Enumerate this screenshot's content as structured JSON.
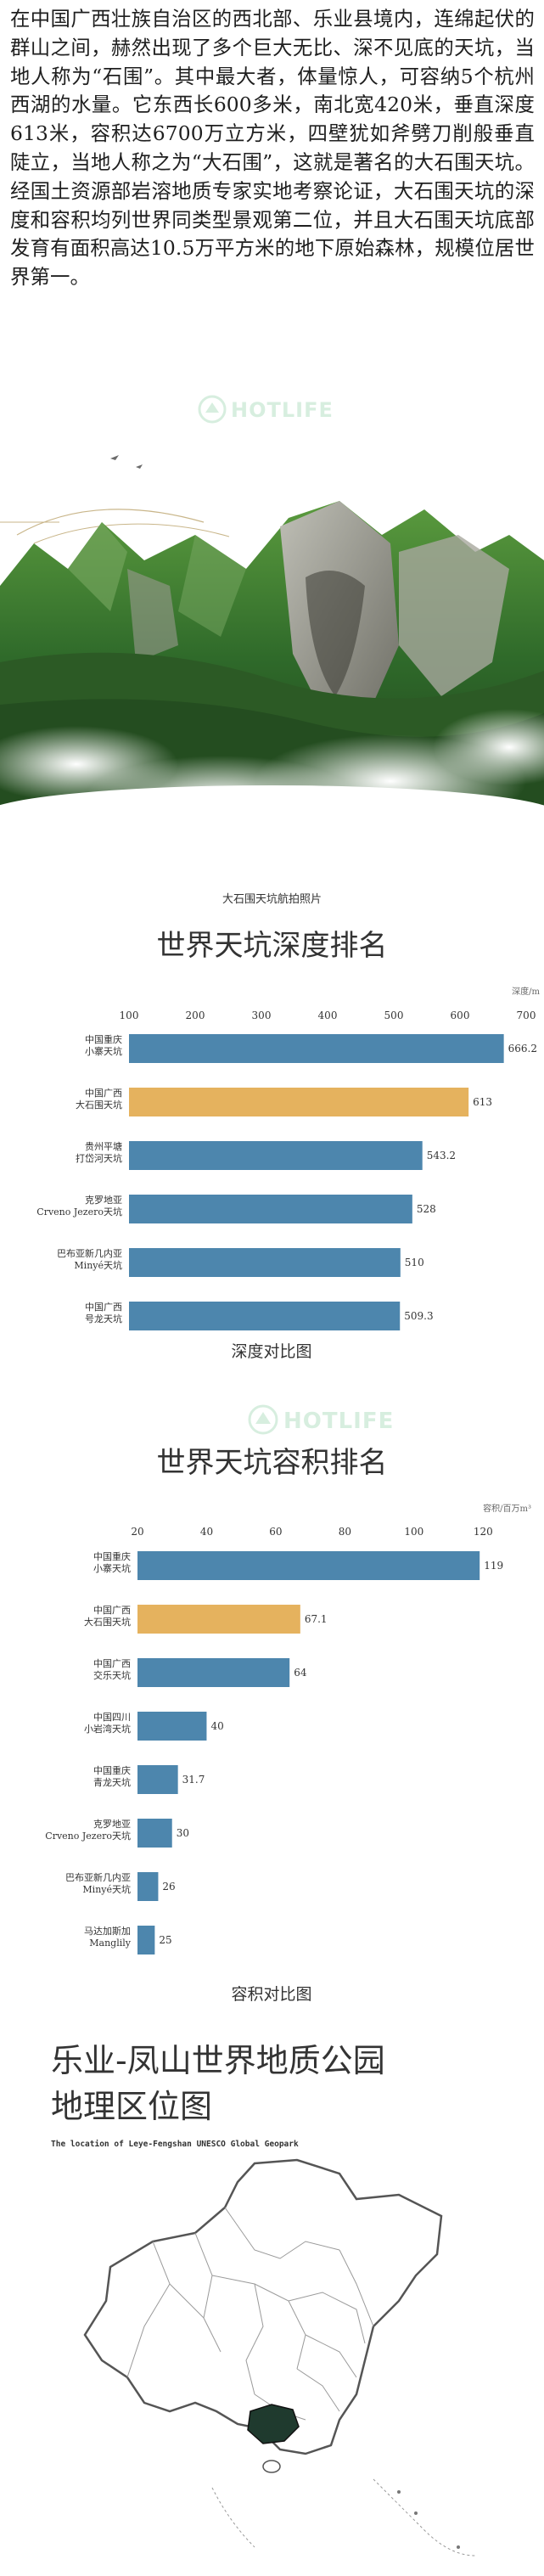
{
  "intro": {
    "text": "在中国广西壮族自治区的西北部、乐业县境内，连绵起伏的群山之间，赫然出现了多个巨大无比、深不见底的天坑，当地人称为“石围”。其中最大者，体量惊人，可容纳5个杭州西湖的水量。它东西长600多米，南北宽420米，垂直深度613米，容积达6700万立方米，四壁犹如斧劈刀削般垂直陡立，当地人称之为“大石围”，这就是著名的大石围天坑。经国土资源部岩溶地质专家实地考察论证，大石围天坑的深度和容积均列世界同类型景观第二位，并且大石围天坑底部发育有面积高达10.5万平方米的地下原始森林，规模位居世界第一。"
  },
  "photo": {
    "caption": "大石围天坑航拍照片"
  },
  "watermark": "HOTLIFE",
  "colors": {
    "blue": "#4d86ad",
    "orange": "#e5b25e",
    "green_dark": "#2e4a2f",
    "map_fill": "#1f3a2e"
  },
  "chart_data": [
    {
      "type": "bar",
      "title": "世界天坑深度排名",
      "caption": "深度对比图",
      "unit": "深度/m",
      "xlim": [
        100,
        700
      ],
      "ticks": [
        100,
        200,
        300,
        400,
        500,
        600,
        700
      ],
      "categories": [
        [
          "中国重庆",
          "小寨天坑"
        ],
        [
          "中国广西",
          "大石围天坑"
        ],
        [
          "贵州平塘",
          "打岱河天坑"
        ],
        [
          "克罗地亚",
          "Crveno Jezero天坑"
        ],
        [
          "巴布亚新几内亚",
          "Minyé天坑"
        ],
        [
          "中国广西",
          "号龙天坑"
        ]
      ],
      "values": [
        666.2,
        613,
        543.2,
        528,
        510,
        509.3
      ],
      "value_labels": [
        "666.2",
        "613",
        "543.2",
        "528",
        "510",
        "509.3"
      ],
      "highlight_index": 1
    },
    {
      "type": "bar",
      "title": "世界天坑容积排名",
      "caption": "容积对比图",
      "unit": "容积/百万m³",
      "xlim": [
        20,
        130
      ],
      "ticks": [
        20,
        40,
        60,
        80,
        100,
        120
      ],
      "categories": [
        [
          "中国重庆",
          "小寨天坑"
        ],
        [
          "中国广西",
          "大石围天坑"
        ],
        [
          "中国广西",
          "交乐天坑"
        ],
        [
          "中国四川",
          "小岩湾天坑"
        ],
        [
          "中国重庆",
          "青龙天坑"
        ],
        [
          "克罗地亚",
          "Crveno Jezero天坑"
        ],
        [
          "巴布亚新几内亚",
          "Minyé天坑"
        ],
        [
          "马达加斯加",
          "Manglily"
        ]
      ],
      "values": [
        119,
        67.1,
        64,
        40,
        31.7,
        30,
        26,
        25
      ],
      "value_labels": [
        "119",
        "67.1",
        "64",
        "40",
        "31.7",
        "30",
        "26",
        "25"
      ],
      "highlight_index": 1
    }
  ],
  "map": {
    "title_line1": "乐业-凤山世界地质公园",
    "title_line2": "地理区位图",
    "subtitle": "The location of Leye-Fengshan UNESCO Global Geopark"
  }
}
